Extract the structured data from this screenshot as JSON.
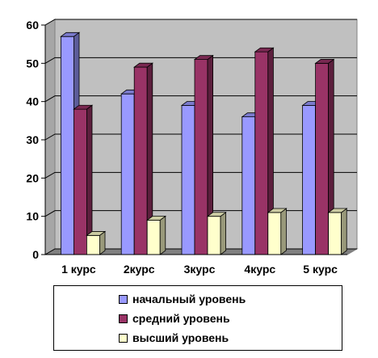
{
  "chart_data": {
    "type": "bar",
    "categories": [
      "1 курс",
      "2курс",
      "3курс",
      "4курс",
      "5 курс"
    ],
    "series": [
      {
        "name": "начальный уровень",
        "values": [
          57,
          42,
          39,
          36,
          39
        ],
        "color": "#9999ff"
      },
      {
        "name": "средний уровень",
        "values": [
          38,
          49,
          51,
          53,
          50
        ],
        "color": "#993366"
      },
      {
        "name": "высший уровень",
        "values": [
          5,
          9,
          10,
          11,
          11
        ],
        "color": "#ffffcc"
      }
    ],
    "yticks": [
      "0",
      "10",
      "20",
      "30",
      "40",
      "50",
      "60"
    ],
    "ylim": [
      0,
      60
    ],
    "grid": true,
    "plot_background": "#c0c0c0",
    "legend_position": "bottom"
  }
}
